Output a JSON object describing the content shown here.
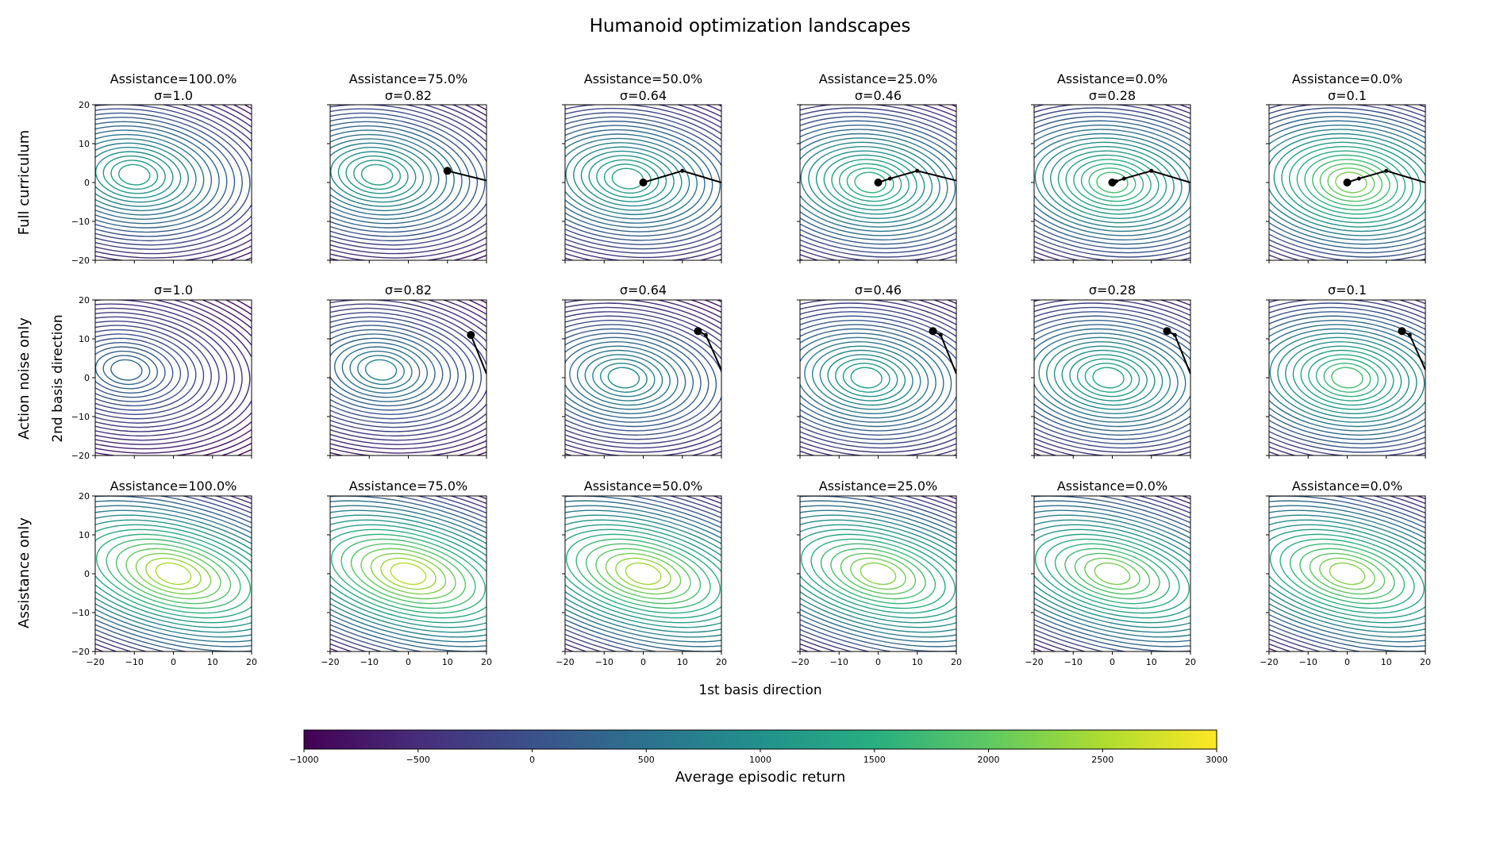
{
  "figure": {
    "title": "Humanoid optimization landscapes",
    "xlabel": "1st basis direction",
    "ylabel": "2nd basis direction"
  },
  "rows": [
    {
      "label": "Full curriculum"
    },
    {
      "label": "Action noise only"
    },
    {
      "label": "Assistance only"
    }
  ],
  "chart_data": {
    "type": "contour",
    "title": "Humanoid optimization landscapes",
    "xlabel": "1st basis direction",
    "ylabel": "2nd basis direction",
    "xlim": [
      -20,
      20
    ],
    "ylim": [
      -20,
      20
    ],
    "xticks": [
      -20,
      -10,
      0,
      10,
      20
    ],
    "yticks": [
      -20,
      -10,
      0,
      10,
      20
    ],
    "tick_labels": [
      "−20",
      "−10",
      "0",
      "10",
      "20"
    ],
    "colormap": "viridis",
    "colorbar": {
      "label": "Average episodic return",
      "range": [
        -1000,
        3000
      ],
      "ticks": [
        -1000,
        -500,
        0,
        500,
        1000,
        1500,
        2000,
        2500,
        3000
      ],
      "tick_labels": [
        "−1000",
        "−500",
        "0",
        "500",
        "1000",
        "1500",
        "2000",
        "2500",
        "3000"
      ]
    },
    "panels": [
      {
        "row": 0,
        "col": 0,
        "title_lines": [
          "Assistance=100.0%",
          "σ=1.0"
        ],
        "assistance": 100.0,
        "sigma": 1.0,
        "peak": [
          -10,
          2
        ],
        "peak_value": 1400,
        "trajectory": []
      },
      {
        "row": 0,
        "col": 1,
        "title_lines": [
          "Assistance=75.0%",
          "σ=0.82"
        ],
        "assistance": 75.0,
        "sigma": 0.82,
        "peak": [
          -8,
          2
        ],
        "peak_value": 1350,
        "trajectory": [
          [
            20,
            0.5
          ],
          [
            10,
            3
          ]
        ]
      },
      {
        "row": 0,
        "col": 2,
        "title_lines": [
          "Assistance=50.0%",
          "σ=0.64"
        ],
        "assistance": 50.0,
        "sigma": 0.64,
        "peak": [
          -4,
          1
        ],
        "peak_value": 1450,
        "trajectory": [
          [
            20,
            0
          ],
          [
            10,
            3
          ],
          [
            0,
            0
          ]
        ]
      },
      {
        "row": 0,
        "col": 3,
        "title_lines": [
          "Assistance=25.0%",
          "σ=0.46"
        ],
        "assistance": 25.0,
        "sigma": 0.46,
        "peak": [
          -2,
          0
        ],
        "peak_value": 1700,
        "trajectory": [
          [
            20,
            0.5
          ],
          [
            10,
            3
          ],
          [
            3,
            1
          ],
          [
            0,
            0
          ]
        ]
      },
      {
        "row": 0,
        "col": 4,
        "title_lines": [
          "Assistance=0.0%",
          "σ=0.28"
        ],
        "assistance": 0.0,
        "sigma": 0.28,
        "peak": [
          0,
          0
        ],
        "peak_value": 1900,
        "trajectory": [
          [
            20,
            0
          ],
          [
            10,
            3
          ],
          [
            3,
            1
          ],
          [
            1,
            0.3
          ],
          [
            0,
            0
          ]
        ]
      },
      {
        "row": 0,
        "col": 5,
        "title_lines": [
          "Assistance=0.0%",
          "σ=0.1"
        ],
        "assistance": 0.0,
        "sigma": 0.1,
        "peak": [
          1,
          0
        ],
        "peak_value": 2300,
        "trajectory": [
          [
            20,
            0
          ],
          [
            10,
            3
          ],
          [
            3,
            1
          ],
          [
            0,
            0
          ]
        ]
      },
      {
        "row": 1,
        "col": 0,
        "title_lines": [
          "σ=1.0"
        ],
        "sigma": 1.0,
        "peak": [
          -12,
          2
        ],
        "peak_value": 400,
        "trajectory": []
      },
      {
        "row": 1,
        "col": 1,
        "title_lines": [
          "σ=0.82"
        ],
        "sigma": 0.82,
        "peak": [
          -7,
          2
        ],
        "peak_value": 800,
        "trajectory": [
          [
            20,
            1
          ],
          [
            16,
            11
          ]
        ]
      },
      {
        "row": 1,
        "col": 2,
        "title_lines": [
          "σ=0.64"
        ],
        "sigma": 0.64,
        "peak": [
          -5,
          0
        ],
        "peak_value": 1000,
        "trajectory": [
          [
            20,
            2
          ],
          [
            16,
            11
          ],
          [
            14,
            12
          ]
        ]
      },
      {
        "row": 1,
        "col": 3,
        "title_lines": [
          "σ=0.46"
        ],
        "sigma": 0.46,
        "peak": [
          -3,
          0
        ],
        "peak_value": 1300,
        "trajectory": [
          [
            20,
            1
          ],
          [
            16,
            11
          ],
          [
            14,
            12
          ]
        ]
      },
      {
        "row": 1,
        "col": 4,
        "title_lines": [
          "σ=0.28"
        ],
        "sigma": 0.28,
        "peak": [
          -1,
          0
        ],
        "peak_value": 1500,
        "trajectory": [
          [
            20,
            1
          ],
          [
            16,
            11
          ],
          [
            14,
            12
          ]
        ]
      },
      {
        "row": 1,
        "col": 5,
        "title_lines": [
          "σ=0.1"
        ],
        "sigma": 0.1,
        "peak": [
          0,
          0
        ],
        "peak_value": 1900,
        "trajectory": [
          [
            20,
            2
          ],
          [
            16,
            11
          ],
          [
            14,
            12
          ]
        ]
      },
      {
        "row": 2,
        "col": 0,
        "title_lines": [
          "Assistance=100.0%"
        ],
        "assistance": 100.0,
        "peak": [
          0,
          0
        ],
        "peak_value": 2650,
        "trajectory": []
      },
      {
        "row": 2,
        "col": 1,
        "title_lines": [
          "Assistance=75.0%"
        ],
        "assistance": 75.0,
        "peak": [
          0,
          0
        ],
        "peak_value": 2700,
        "trajectory": []
      },
      {
        "row": 2,
        "col": 2,
        "title_lines": [
          "Assistance=50.0%"
        ],
        "assistance": 50.0,
        "peak": [
          0,
          0
        ],
        "peak_value": 2600,
        "trajectory": []
      },
      {
        "row": 2,
        "col": 3,
        "title_lines": [
          "Assistance=25.0%"
        ],
        "assistance": 25.0,
        "peak": [
          0,
          0
        ],
        "peak_value": 2400,
        "trajectory": []
      },
      {
        "row": 2,
        "col": 4,
        "title_lines": [
          "Assistance=0.0%"
        ],
        "assistance": 0.0,
        "peak": [
          0,
          0
        ],
        "peak_value": 2300,
        "trajectory": []
      },
      {
        "row": 2,
        "col": 5,
        "title_lines": [
          "Assistance=0.0%"
        ],
        "assistance": 0.0,
        "peak": [
          0,
          0
        ],
        "peak_value": 2400,
        "trajectory": []
      }
    ]
  }
}
